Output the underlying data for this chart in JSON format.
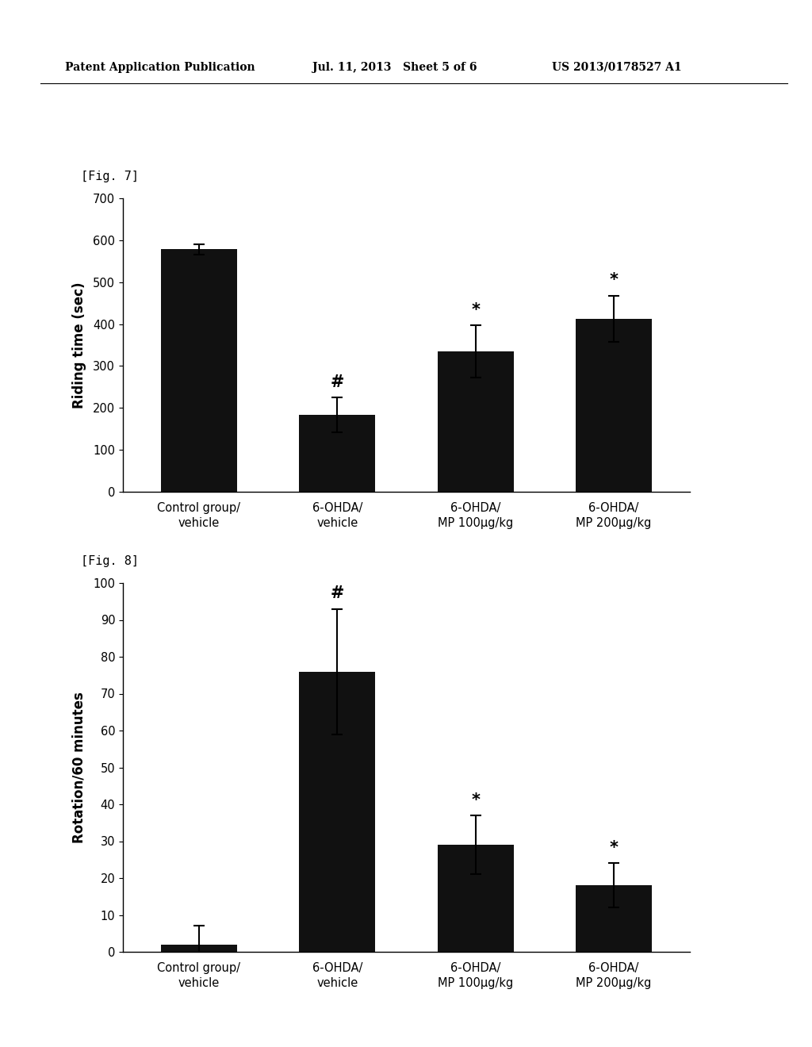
{
  "header_left": "Patent Application Publication",
  "header_mid": "Jul. 11, 2013   Sheet 5 of 6",
  "header_right": "US 2013/0178527 A1",
  "fig7_label": "[Fig. 7]",
  "fig8_label": "[Fig. 8]",
  "fig7": {
    "categories": [
      "Control group/\nvehicle",
      "6-OHDA/\nvehicle",
      "6-OHDA/\nMP 100μg/kg",
      "6-OHDA/\nMP 200μg/kg"
    ],
    "values": [
      578,
      183,
      335,
      413
    ],
    "errors": [
      12,
      42,
      62,
      55
    ],
    "ylabel": "Riding time (sec)",
    "ylim": [
      0,
      700
    ],
    "yticks": [
      0,
      100,
      200,
      300,
      400,
      500,
      600,
      700
    ],
    "bar_color": "#111111",
    "annotations": [
      "",
      "#",
      "*",
      "*"
    ],
    "annotation_offsets": [
      0,
      18,
      18,
      18
    ]
  },
  "fig8": {
    "categories": [
      "Control group/\nvehicle",
      "6-OHDA/\nvehicle",
      "6-OHDA/\nMP 100μg/kg",
      "6-OHDA/\nMP 200μg/kg"
    ],
    "values": [
      2,
      76,
      29,
      18
    ],
    "errors": [
      5,
      17,
      8,
      6
    ],
    "ylabel": "Rotation/60 minutes",
    "ylim": [
      0,
      100
    ],
    "yticks": [
      0,
      10,
      20,
      30,
      40,
      50,
      60,
      70,
      80,
      90,
      100
    ],
    "bar_color": "#111111",
    "annotations": [
      "",
      "#",
      "*",
      "*"
    ],
    "annotation_offsets": [
      0,
      2,
      2,
      2
    ]
  }
}
